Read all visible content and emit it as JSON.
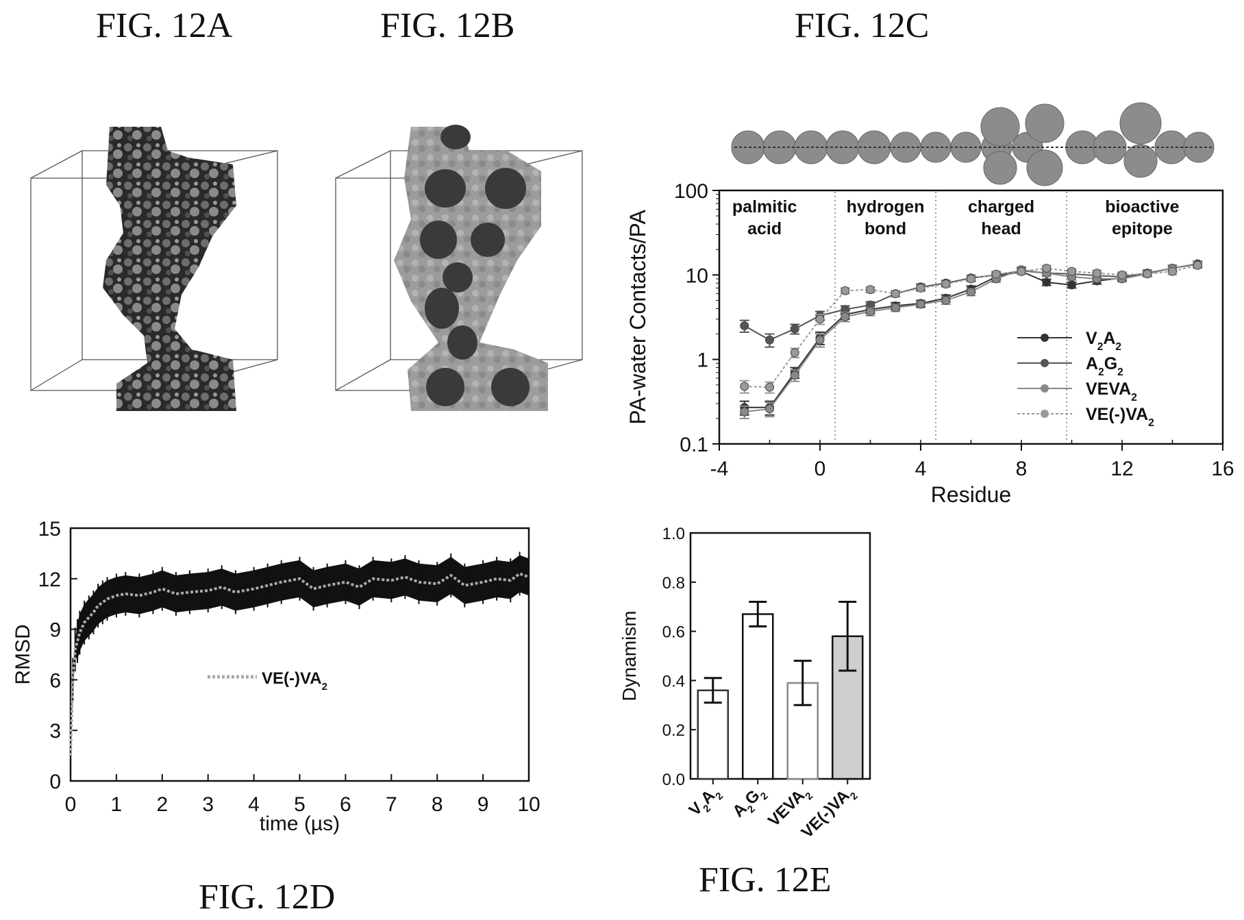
{
  "figures": {
    "a": "FIG. 12A",
    "b": "FIG. 12B",
    "c": "FIG. 12C",
    "d": "FIG. 12D",
    "e": "FIG. 12E"
  },
  "chart_data": [
    {
      "id": "12C",
      "type": "line",
      "xlabel": "Residue",
      "ylabel": "PA-water Contacts/PA",
      "xlim": [
        -4,
        16
      ],
      "ylim": [
        0.1,
        100
      ],
      "yscale": "log",
      "xticks": [
        "-4",
        "0",
        "4",
        "8",
        "12",
        "16"
      ],
      "yticks": [
        "0.1",
        "1",
        "10",
        "100"
      ],
      "regions": [
        {
          "lines": [
            "palmitic",
            "acid"
          ]
        },
        {
          "lines": [
            "hydrogen",
            "bond"
          ]
        },
        {
          "lines": [
            "charged",
            "head"
          ]
        },
        {
          "lines": [
            "bioactive",
            "epitope"
          ]
        }
      ],
      "region_boundaries": [
        0.6,
        4.6,
        9.8
      ],
      "legend_position": "lower-right",
      "x": [
        -3,
        -2,
        -1,
        0,
        1,
        2,
        3,
        4,
        5,
        6,
        7,
        8,
        9,
        10,
        11,
        12,
        13,
        14,
        15
      ],
      "series": [
        {
          "name": "V2A2",
          "label": {
            "base": "V",
            "sub1": "2",
            "mid": "A",
            "sub2": "2"
          },
          "color": "#333333",
          "dash": "solid",
          "values": [
            0.27,
            0.27,
            0.7,
            1.8,
            3.4,
            3.9,
            4.3,
            4.6,
            5.3,
            6.8,
            9.5,
            11.0,
            8.2,
            7.6,
            8.5,
            9.2,
            10.5,
            12.0,
            13.5
          ],
          "errors": [
            0.05,
            0.05,
            0.1,
            0.3,
            0.4,
            0.4,
            0.4,
            0.4,
            0.5,
            0.6,
            0.8,
            0.8,
            0.7,
            0.6,
            0.7,
            0.8,
            0.8,
            1.0,
            1.0
          ]
        },
        {
          "name": "A2G2",
          "label": {
            "base": "A",
            "sub1": "2",
            "mid": "G",
            "sub2": "2"
          },
          "color": "#555555",
          "dash": "solid",
          "values": [
            2.5,
            1.7,
            2.3,
            3.3,
            3.9,
            4.4,
            6.0,
            7.2,
            8.0,
            9.2,
            10.0,
            11.2,
            10.5,
            10.3,
            9.8,
            9.5,
            10.5,
            12.0,
            13.5
          ],
          "errors": [
            0.4,
            0.3,
            0.3,
            0.4,
            0.4,
            0.4,
            0.5,
            0.6,
            0.6,
            0.7,
            0.8,
            0.8,
            0.8,
            0.8,
            0.8,
            0.8,
            0.9,
            1.0,
            1.0
          ]
        },
        {
          "name": "VEVA2",
          "label": {
            "base": "VEVA",
            "sub1": "2",
            "mid": "",
            "sub2": ""
          },
          "color": "#888888",
          "dash": "solid",
          "values": [
            0.24,
            0.26,
            0.65,
            1.7,
            3.2,
            3.7,
            4.1,
            4.5,
            5.0,
            6.3,
            9.0,
            11.5,
            10.5,
            9.5,
            9.0,
            9.0,
            10.3,
            12.0,
            13.3
          ],
          "errors": [
            0.04,
            0.05,
            0.1,
            0.3,
            0.4,
            0.4,
            0.4,
            0.4,
            0.5,
            0.6,
            0.8,
            0.9,
            0.8,
            0.8,
            0.7,
            0.7,
            0.8,
            1.0,
            1.0
          ]
        },
        {
          "name": "VE(-)VA2",
          "label": {
            "base": "VE(-)VA",
            "sub1": "2",
            "mid": "",
            "sub2": ""
          },
          "color": "#999999",
          "dash": "4,3",
          "values": [
            0.48,
            0.47,
            1.2,
            3.0,
            6.5,
            6.7,
            6.0,
            7.0,
            7.8,
            9.0,
            10.2,
            11.0,
            12.0,
            11.0,
            10.5,
            10.0,
            10.3,
            11.0,
            13.0
          ],
          "errors": [
            0.08,
            0.07,
            0.15,
            0.4,
            0.5,
            0.5,
            0.5,
            0.6,
            0.6,
            0.7,
            0.8,
            0.8,
            0.9,
            0.8,
            0.8,
            0.8,
            0.8,
            0.9,
            1.0
          ]
        }
      ]
    },
    {
      "id": "12D",
      "type": "line",
      "xlabel": "time (µs)",
      "ylabel": "RMSD",
      "xlim": [
        0,
        10
      ],
      "ylim": [
        0,
        15
      ],
      "xticks": [
        "0",
        "1",
        "2",
        "3",
        "4",
        "5",
        "6",
        "7",
        "8",
        "9",
        "10"
      ],
      "yticks": [
        "0",
        "3",
        "6",
        "9",
        "12",
        "15"
      ],
      "legend": {
        "base": "VE(-)VA",
        "sub": "2"
      },
      "x": [
        0,
        0.05,
        0.1,
        0.15,
        0.2,
        0.3,
        0.4,
        0.5,
        0.6,
        0.7,
        0.8,
        1.0,
        1.2,
        1.5,
        1.8,
        2.0,
        2.3,
        2.6,
        3.0,
        3.3,
        3.6,
        4.0,
        4.3,
        4.6,
        5.0,
        5.3,
        5.6,
        6.0,
        6.3,
        6.6,
        7.0,
        7.3,
        7.6,
        8.0,
        8.3,
        8.6,
        9.0,
        9.3,
        9.6,
        9.8,
        10.0
      ],
      "series": [
        {
          "name": "VE(-)VA2",
          "color": "#aaaaaa",
          "values": [
            1.5,
            6.0,
            7.8,
            8.3,
            8.8,
            9.4,
            9.7,
            10.0,
            10.4,
            10.6,
            10.8,
            11.0,
            11.1,
            11.0,
            11.2,
            11.4,
            11.1,
            11.2,
            11.3,
            11.5,
            11.2,
            11.4,
            11.6,
            11.8,
            12.0,
            11.4,
            11.6,
            11.8,
            11.5,
            12.0,
            11.9,
            12.1,
            11.8,
            11.7,
            12.2,
            11.6,
            11.8,
            12.0,
            11.9,
            12.3,
            12.1
          ],
          "error": 1.1
        }
      ]
    },
    {
      "id": "12E",
      "type": "bar",
      "ylabel": "Dynamism",
      "ylim": [
        0,
        1.0
      ],
      "yticks": [
        "0.0",
        "0.2",
        "0.4",
        "0.6",
        "0.8",
        "1.0"
      ],
      "categories": [
        "V2A2",
        "A2G2",
        "VEVA2",
        "VE(-)VA2"
      ],
      "category_labels": [
        {
          "base": "V",
          "sub1": "2",
          "mid": "A",
          "sub2": "2"
        },
        {
          "base": "A",
          "sub1": "2",
          "mid": "G",
          "sub2": "2"
        },
        {
          "base": "VEVA",
          "sub1": "2",
          "mid": "",
          "sub2": ""
        },
        {
          "base": "VE(-)VA",
          "sub1": "2",
          "mid": "",
          "sub2": ""
        }
      ],
      "values": [
        0.36,
        0.67,
        0.39,
        0.58
      ],
      "errors": [
        0.05,
        0.05,
        0.09,
        0.14
      ],
      "bar_fills": [
        "#ffffff",
        "#ffffff",
        "#ffffff",
        "#cfcfcf"
      ],
      "bar_strokes": [
        "#333333",
        "#111111",
        "#888888",
        "#111111"
      ]
    }
  ]
}
